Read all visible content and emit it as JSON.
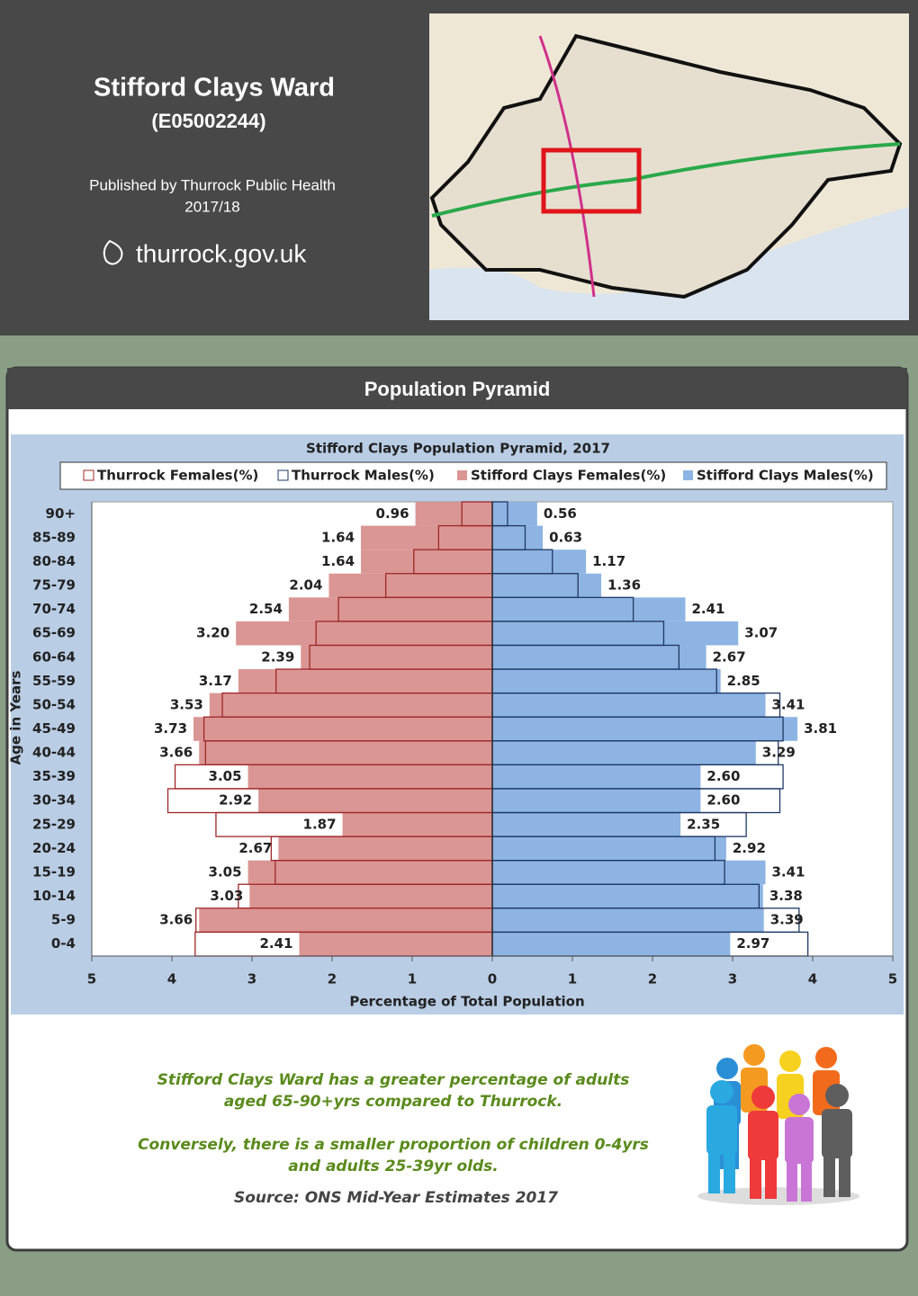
{
  "header": {
    "title": "Stifford Clays Ward",
    "code": "(E05002244)",
    "publisher": "Published by Thurrock Public Health",
    "period": "2017/18",
    "website": "thurrock.gov.uk"
  },
  "panel": {
    "heading": "Population Pyramid"
  },
  "chart_data": {
    "type": "pyramid",
    "title": "Stifford Clays Population Pyramid, 2017",
    "xlabel": "Percentage of Total Population",
    "ylabel": "Age in Years",
    "categories": [
      "90+",
      "85-89",
      "80-84",
      "75-79",
      "70-74",
      "65-69",
      "60-64",
      "55-59",
      "50-54",
      "45-49",
      "40-44",
      "35-39",
      "30-34",
      "25-29",
      "20-24",
      "15-19",
      "10-14",
      "5-9",
      "0-4"
    ],
    "series": [
      {
        "name": "Stifford Clays Females(%)",
        "color": "#da9694",
        "style": "fill",
        "side": "left",
        "values": [
          0.96,
          1.64,
          1.64,
          2.04,
          2.54,
          3.2,
          2.39,
          3.17,
          3.53,
          3.73,
          3.66,
          3.05,
          2.92,
          1.87,
          2.67,
          3.05,
          3.03,
          3.66,
          2.41
        ],
        "value_labels": [
          "0.96",
          "1.64",
          "1.64",
          "2.04",
          "2.54",
          "3.20",
          "2.39",
          "3.17",
          "3.53",
          "3.73",
          "3.66",
          "3.05",
          "2.92",
          "1.87",
          "2.67",
          "3.05",
          "3.03",
          "3.66",
          "2.41"
        ]
      },
      {
        "name": "Stifford Clays Males(%)",
        "color": "#8eb4e3",
        "style": "fill",
        "side": "right",
        "values": [
          0.56,
          0.63,
          1.17,
          1.36,
          2.41,
          3.07,
          2.67,
          2.85,
          3.41,
          3.81,
          3.29,
          2.6,
          2.6,
          2.35,
          2.92,
          3.41,
          3.38,
          3.39,
          2.97
        ],
        "value_labels": [
          "0.56",
          "0.63",
          "1.17",
          "1.36",
          "2.41",
          "3.07",
          "2.67",
          "2.85",
          "3.41",
          "3.81",
          "3.29",
          "2.60",
          "2.60",
          "2.35",
          "2.92",
          "3.41",
          "3.38",
          "3.39",
          "2.97"
        ]
      },
      {
        "name": "Thurrock Females(%)",
        "color": "#a0282a",
        "style": "outline",
        "side": "left",
        "values": [
          0.38,
          0.67,
          0.98,
          1.33,
          1.92,
          2.2,
          2.28,
          2.7,
          3.37,
          3.6,
          3.58,
          3.96,
          4.05,
          3.45,
          2.76,
          2.71,
          3.17,
          3.7,
          3.71
        ]
      },
      {
        "name": "Thurrock Males(%)",
        "color": "#1f3864",
        "style": "outline",
        "side": "right",
        "values": [
          0.19,
          0.41,
          0.75,
          1.07,
          1.76,
          2.14,
          2.33,
          2.8,
          3.59,
          3.63,
          3.57,
          3.63,
          3.59,
          3.17,
          2.78,
          2.9,
          3.33,
          3.83,
          3.94
        ]
      }
    ],
    "legend_order": [
      2,
      3,
      0,
      1
    ],
    "xlim": [
      -5,
      5
    ],
    "xticks": [
      {
        "value": -5,
        "label": "5"
      },
      {
        "value": -4,
        "label": "4"
      },
      {
        "value": -3,
        "label": "3"
      },
      {
        "value": -2,
        "label": "2"
      },
      {
        "value": -1,
        "label": "1"
      },
      0,
      1,
      2,
      3,
      4,
      5
    ],
    "grid": false
  },
  "notes": {
    "lines": [
      "Stifford Clays Ward has a greater percentage of adults",
      "aged 65-90+yrs compared to Thurrock.",
      "Conversely, there is a smaller proportion of children 0-4yrs",
      "and adults 25-39yr olds."
    ],
    "source": "Source: ONS Mid-Year Estimates 2017"
  }
}
